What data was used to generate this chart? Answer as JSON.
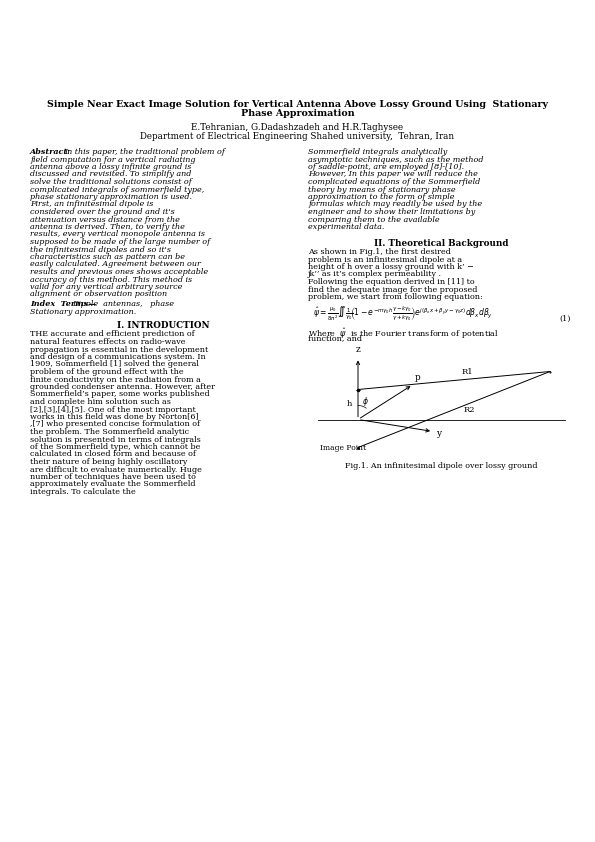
{
  "title_line1": "Simple Near Exact Image Solution for Vertical Antenna Above Lossy Ground Using  Stationary",
  "title_line2": "Phase Approximation",
  "authors": "E.Tehranian, G.Dadashzadeh and H.R.Taghysee",
  "affiliation": "Department of Electrical Engineering Shahed university,  Tehran, Iran",
  "abstract_left": "In this paper, the traditional problem of field computation for a vertical radiating antenna above a lossy infinite ground is discussed and revisited. To simplify and solve the traditional solutions consist of complicated integrals of sommerfield type, phase stationary approximation is used. First, an infinitesimal dipole is considered over the ground  and it's attenuation versus distance from the antenna is derived.   Then, to verify the results, every vertical monopole antenna is supposed to be made of the large number of the infinitesimal dipoles and so it's characteristics such as pattern can be easily calculated. Agreement  between our results and previous ones shows acceptable accuracy of this method. This method is valid for any vertical arbitrary source alignment or observation position",
  "index_terms_content": "Dipole  antennas,   phase Stationary approximation.",
  "right_abstract": "Sommerfield  integrals  analytically  asymptotic techniques, such as the method of  saddle-point, are  employed [8]-[10]. However,  In this paper we will reduce the complicated equations of the Sommerfield theory  by means of stationary phase approximation to the form of simple formulas which may readily be used by the engineer and to show their limitations by comparing them to the available experimental data.",
  "section2_title": "II. Theoretical Background",
  "section2_para": "As shown in Fig.1, the first desired problem is an infinitesimal dipole at a height of  h over a lossy ground with k’ − jk’’   as it’s complex permeability . Following the equation derived in [11]   to find the adequate image for the proposed problem, we start from following equation:",
  "eq1_label": "(1)",
  "eq1_note_after": "is the Fourier transform of potential function, and",
  "section1_title": "I. INTRODUCTION",
  "intro_para": "THE  accurate and efficient prediction of natural features effects on radio-wave propagation is essential in the development and design of a communications system. In 1909, Sommerfield [1] solved the general problem of the ground effect with the finite conductivity on the radiation from a grounded condenser antenna. However, after Sommerfield’s paper, some works published and complete him solution such as [2],[3],[4],[5]. One of the most important works in this field was done by Norton[6] ,[7]  who presented concise formulation of the problem. The Sommerfield analytic solution is presented in terms of integrals of the Sommerfield type, which cannot be calculated in closed form and because of their nature of being highly oscillatory are difficult to evaluate numerically. Huge number of techniques have been used to approximately evaluate the Sommerfield integrals.  To calculate the",
  "fig_caption": "Fig.1. An infinitesimal dipole over lossy ground",
  "fig_label": "Image Point",
  "background_color": "#ffffff"
}
